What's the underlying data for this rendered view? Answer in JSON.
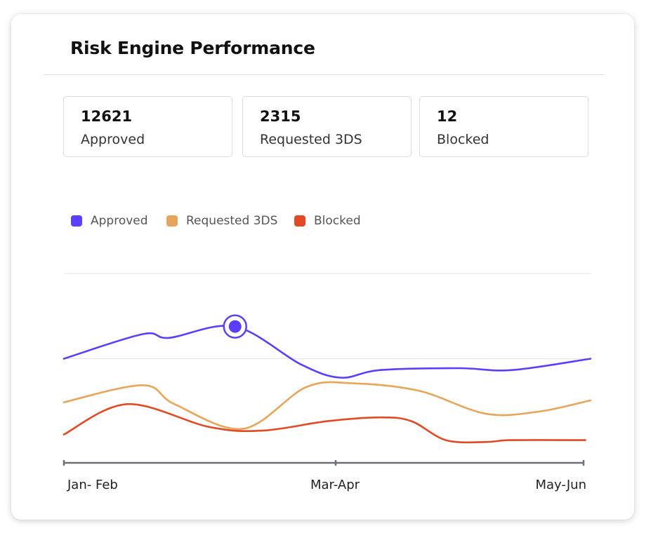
{
  "card": {
    "title": "Risk Engine Performance"
  },
  "stats": [
    {
      "value": "12621",
      "label": "Approved"
    },
    {
      "value": "2315",
      "label": "Requested 3DS"
    },
    {
      "value": "12",
      "label": "Blocked"
    }
  ],
  "colors": {
    "approved": "#5b3fff",
    "requested_3ds": "#e8a55a",
    "blocked": "#e24a24",
    "axis": "#6a6f78",
    "grid": "#e5e5e5"
  },
  "chart_data": {
    "type": "line",
    "title": "",
    "xlabel": "",
    "ylabel": "",
    "categories": [
      "Jan- Feb",
      "Mar-Apr",
      "May-Jun"
    ],
    "x_range": [
      0,
      2
    ],
    "ylim": [
      0,
      100
    ],
    "grid": "horizontal",
    "legend_position": "top-left",
    "highlighted_point": {
      "series": "Approved",
      "x": 0.65,
      "y": 72
    },
    "series": [
      {
        "name": "Approved",
        "color": "#5b3fff",
        "points": [
          [
            0.0,
            55
          ],
          [
            0.3,
            68
          ],
          [
            0.4,
            66
          ],
          [
            0.65,
            72
          ],
          [
            0.9,
            52
          ],
          [
            1.05,
            45
          ],
          [
            1.2,
            49
          ],
          [
            1.5,
            50
          ],
          [
            1.7,
            49
          ],
          [
            2.0,
            55
          ]
        ]
      },
      {
        "name": "Requested 3DS",
        "color": "#e8a55a",
        "points": [
          [
            0.0,
            32
          ],
          [
            0.3,
            41
          ],
          [
            0.42,
            31
          ],
          [
            0.68,
            18
          ],
          [
            0.92,
            40
          ],
          [
            1.1,
            42
          ],
          [
            1.35,
            38
          ],
          [
            1.6,
            26
          ],
          [
            1.8,
            27
          ],
          [
            2.0,
            33
          ]
        ]
      },
      {
        "name": "Blocked",
        "color": "#e24a24",
        "points": [
          [
            0.0,
            15
          ],
          [
            0.24,
            31
          ],
          [
            0.55,
            19
          ],
          [
            0.75,
            17
          ],
          [
            1.0,
            22
          ],
          [
            1.2,
            24
          ],
          [
            1.32,
            22
          ],
          [
            1.45,
            12
          ],
          [
            1.6,
            11
          ],
          [
            1.7,
            12
          ],
          [
            1.98,
            12
          ]
        ]
      }
    ]
  }
}
